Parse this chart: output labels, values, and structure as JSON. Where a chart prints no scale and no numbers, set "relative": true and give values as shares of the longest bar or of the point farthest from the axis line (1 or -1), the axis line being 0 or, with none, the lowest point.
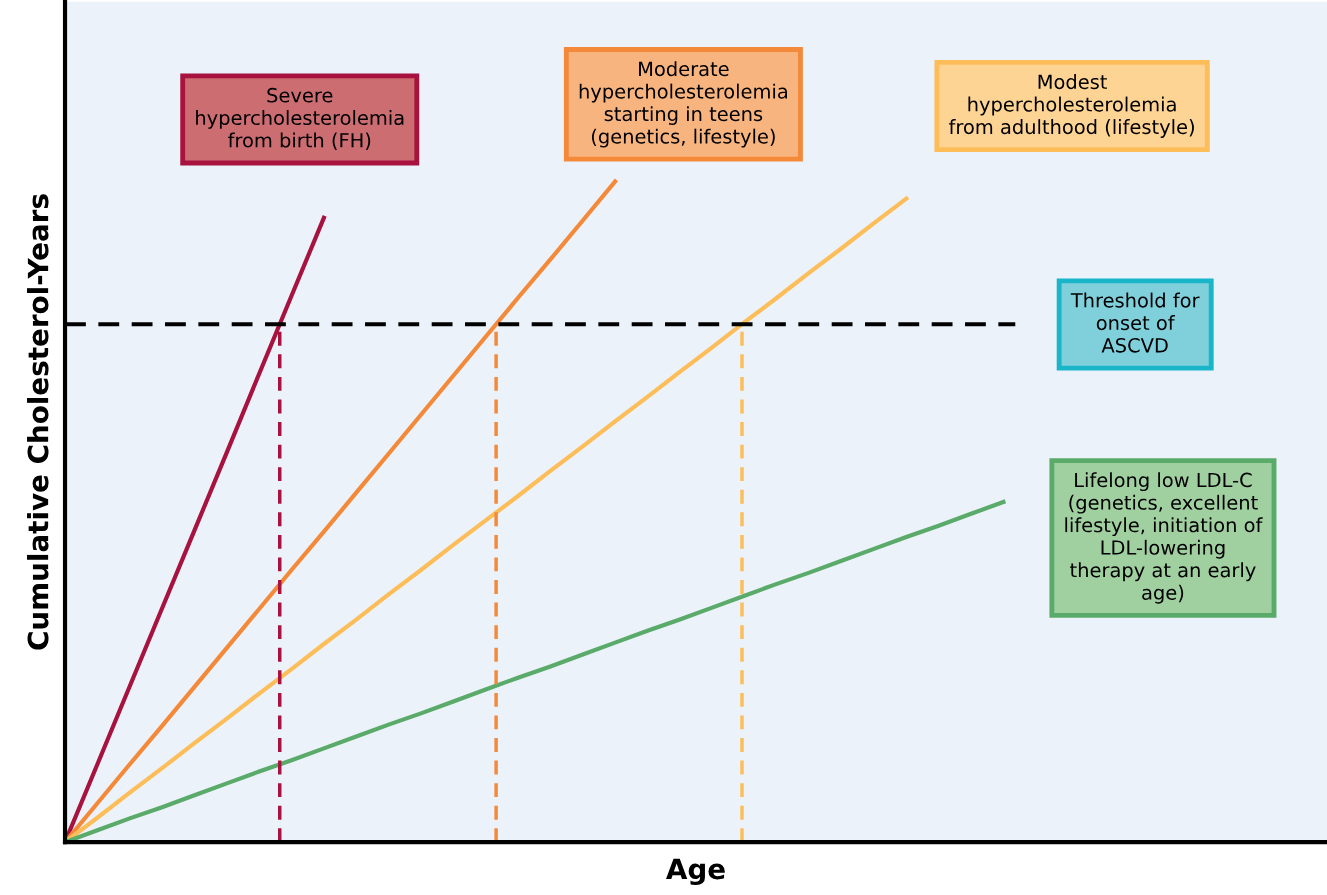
{
  "chart_data": {
    "type": "line",
    "relative": true,
    "xlabel": "Age",
    "ylabel": "Cumulative Cholesterol-Years",
    "legend": false,
    "categories": [
      null,
      null,
      null,
      null,
      null,
      null,
      null,
      null,
      null,
      null,
      null,
      null,
      null,
      null,
      null,
      null,
      null,
      null,
      null,
      null,
      null,
      null,
      null,
      null,
      null,
      null,
      null,
      null,
      null,
      null,
      null,
      null,
      null,
      null,
      null,
      null,
      null,
      null,
      null,
      null
    ],
    "series": [
      {
        "color": "#a8123e",
        "values": [
          0,
          0.118,
          0.236,
          0.354,
          0.472,
          0.59,
          0.709,
          0.827,
          0.945,
          null,
          null,
          null,
          null,
          null,
          null,
          null,
          null,
          null,
          null,
          null,
          null,
          null,
          null,
          null,
          null,
          null,
          null,
          null,
          null,
          null,
          null,
          null,
          null,
          null,
          null,
          null,
          null,
          null,
          null,
          null
        ]
      },
      {
        "color": "#f4893a",
        "values": [
          0,
          0.059,
          0.118,
          0.176,
          0.235,
          0.294,
          0.353,
          0.412,
          0.47,
          0.529,
          0.588,
          0.647,
          0.706,
          0.765,
          0.824,
          0.882,
          0.941,
          1.0,
          null,
          null,
          null,
          null,
          null,
          null,
          null,
          null,
          null,
          null,
          null,
          null,
          null,
          null,
          null,
          null,
          null,
          null,
          null,
          null,
          null,
          null
        ]
      },
      {
        "color": "#fdbd58",
        "values": [
          0,
          0.037,
          0.075,
          0.112,
          0.15,
          0.187,
          0.225,
          0.262,
          0.3,
          0.337,
          0.375,
          0.412,
          0.45,
          0.487,
          0.524,
          0.562,
          0.599,
          0.637,
          0.674,
          0.712,
          0.749,
          0.787,
          0.824,
          0.862,
          0.899,
          0.937,
          0.974,
          null,
          null,
          null,
          null,
          null,
          null,
          null,
          null,
          null,
          null,
          null,
          null,
          null
        ]
      },
      {
        "color": "#5aab6a",
        "values": [
          0,
          0.018,
          0.036,
          0.053,
          0.071,
          0.089,
          0.107,
          0.124,
          0.142,
          0.16,
          0.178,
          0.195,
          0.213,
          0.231,
          0.249,
          0.266,
          0.284,
          0.302,
          0.32,
          0.337,
          0.355,
          0.373,
          0.391,
          0.408,
          0.426,
          0.444,
          0.462,
          0.479,
          0.497,
          0.515,
          null,
          null,
          null,
          null,
          null,
          null,
          null,
          null,
          null,
          null
        ]
      }
    ],
    "ref_lines": [
      {
        "axis": "y",
        "value": 0.784,
        "label": "Threshold for\nonset of\nASCVD",
        "color": "#000000",
        "line_style": "dashed"
      }
    ],
    "annotations": [
      "Severe\nhypercholesterolemia\nfrom birth (FH)",
      "Moderate\nhypercholesterolemia\nstarting in teens\n(genetics, lifestyle)",
      "Modest\nhypercholesterolemia\nfrom adulthood (lifestyle)",
      "Lifelong low LDL-C\n(genetics, excellent\nlifestyle, initiation of\nLDL-lowering\ntherapy at an early\nage)"
    ]
  }
}
